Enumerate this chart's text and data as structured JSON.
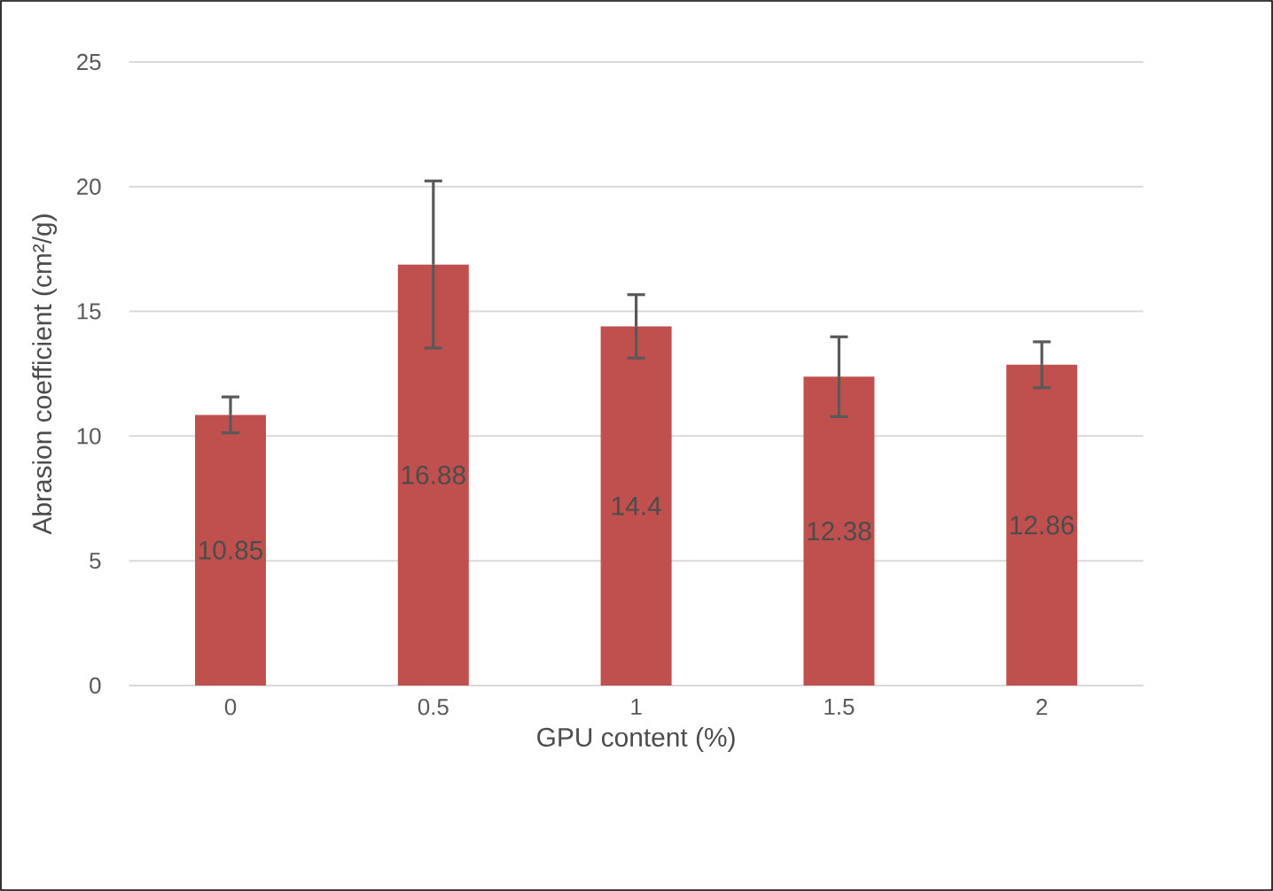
{
  "chart_data": {
    "type": "bar",
    "xlabel": "GPU content (%)",
    "ylabel": "Abrasion coefficient (cm²/g)",
    "categories": [
      "0",
      "0.5",
      "1",
      "1.5",
      "2"
    ],
    "values": [
      10.85,
      16.88,
      14.4,
      12.38,
      12.86
    ],
    "errors": [
      0.72,
      3.35,
      1.27,
      1.6,
      0.92
    ],
    "color": "#c0504d",
    "data_labels": true,
    "ylim": [
      0,
      25
    ],
    "yticks": [
      0,
      5,
      10,
      15,
      20,
      25
    ],
    "grid": "y"
  }
}
